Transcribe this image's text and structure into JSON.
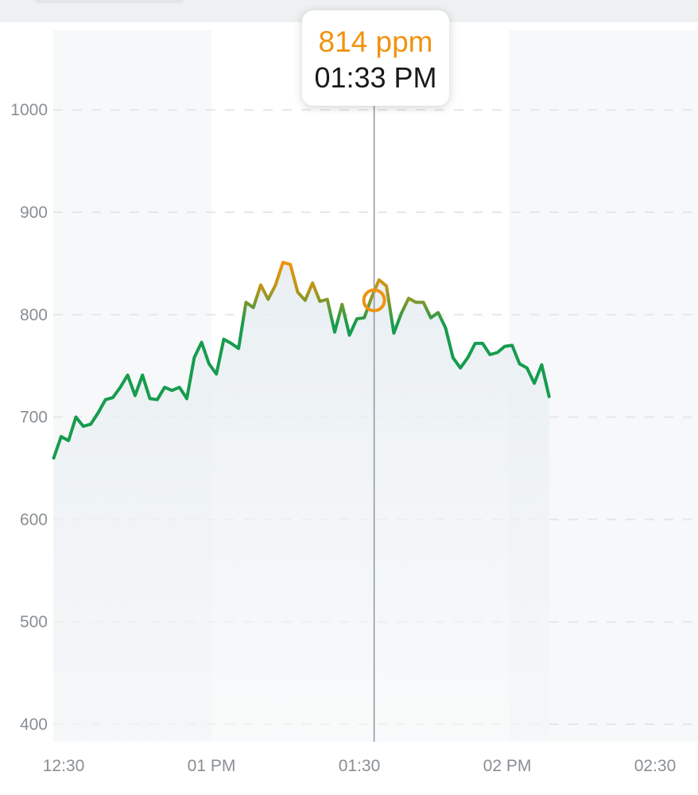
{
  "tooltip": {
    "value": "814 ppm",
    "time": "01:33 PM"
  },
  "colors": {
    "good": "#169c4e",
    "elevated": "#f0930f",
    "grid": "#e4e7e9",
    "crosshair": "#8e969b",
    "area": "#e9eff2"
  },
  "chart_data": {
    "type": "line",
    "title": "",
    "xlabel": "",
    "ylabel": "",
    "unit": "ppm",
    "ylim": [
      400,
      1000
    ],
    "yticks": [
      400,
      500,
      600,
      700,
      800,
      900,
      1000
    ],
    "xtick_labels": [
      "12:30",
      "01 PM",
      "01:30",
      "02 PM",
      "02:30"
    ],
    "xtick_minutes": [
      0,
      30,
      60,
      90,
      120
    ],
    "xlim_minutes": [
      -2,
      120
    ],
    "grid": true,
    "highlight": {
      "minute": 63,
      "value": 814
    },
    "series": [
      {
        "values": [
          [
            -2,
            660
          ],
          [
            -0.5,
            681
          ],
          [
            1,
            677
          ],
          [
            2.5,
            700
          ],
          [
            4,
            691
          ],
          [
            5.5,
            693
          ],
          [
            7,
            704
          ],
          [
            8.5,
            717
          ],
          [
            10,
            719
          ],
          [
            11.5,
            729
          ],
          [
            13,
            741
          ],
          [
            14.5,
            721
          ],
          [
            16,
            741
          ],
          [
            17.5,
            718
          ],
          [
            19,
            717
          ],
          [
            20.5,
            729
          ],
          [
            22,
            726
          ],
          [
            23.5,
            729
          ],
          [
            25,
            718
          ],
          [
            26.5,
            758
          ],
          [
            28,
            773
          ],
          [
            29.5,
            752
          ],
          [
            31,
            742
          ],
          [
            32.5,
            776
          ],
          [
            34,
            772
          ],
          [
            35.5,
            767
          ],
          [
            37,
            812
          ],
          [
            38.5,
            807
          ],
          [
            40,
            829
          ],
          [
            41.5,
            815
          ],
          [
            43,
            829
          ],
          [
            44.5,
            851
          ],
          [
            46,
            849
          ],
          [
            47.5,
            822
          ],
          [
            49,
            814
          ],
          [
            50.5,
            831
          ],
          [
            52,
            813
          ],
          [
            53.5,
            815
          ],
          [
            55,
            783
          ],
          [
            56.5,
            810
          ],
          [
            58,
            780
          ],
          [
            59.5,
            796
          ],
          [
            61,
            797
          ],
          [
            62.5,
            817
          ],
          [
            64,
            834
          ],
          [
            65.5,
            828
          ],
          [
            67,
            782
          ],
          [
            68.5,
            801
          ],
          [
            70,
            816
          ],
          [
            71.5,
            812
          ],
          [
            73,
            812
          ],
          [
            74.5,
            797
          ],
          [
            76,
            802
          ],
          [
            77.5,
            787
          ],
          [
            79,
            758
          ],
          [
            80.5,
            748
          ],
          [
            82,
            758
          ],
          [
            83.5,
            772
          ],
          [
            85,
            772
          ],
          [
            86.5,
            761
          ],
          [
            88,
            763
          ],
          [
            89.5,
            769
          ],
          [
            91,
            770
          ],
          [
            92.5,
            752
          ],
          [
            94,
            748
          ],
          [
            95.5,
            733
          ],
          [
            97,
            751
          ],
          [
            98.5,
            720
          ]
        ]
      }
    ]
  }
}
